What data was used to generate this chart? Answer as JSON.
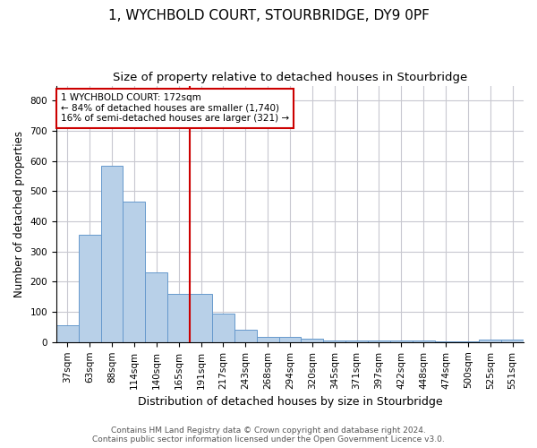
{
  "title": "1, WYCHBOLD COURT, STOURBRIDGE, DY9 0PF",
  "subtitle": "Size of property relative to detached houses in Stourbridge",
  "xlabel": "Distribution of detached houses by size in Stourbridge",
  "ylabel": "Number of detached properties",
  "categories": [
    "37sqm",
    "63sqm",
    "88sqm",
    "114sqm",
    "140sqm",
    "165sqm",
    "191sqm",
    "217sqm",
    "243sqm",
    "268sqm",
    "294sqm",
    "320sqm",
    "345sqm",
    "371sqm",
    "397sqm",
    "422sqm",
    "448sqm",
    "474sqm",
    "500sqm",
    "525sqm",
    "551sqm"
  ],
  "values": [
    55,
    355,
    585,
    465,
    230,
    160,
    160,
    95,
    42,
    18,
    18,
    12,
    5,
    5,
    5,
    5,
    5,
    2,
    2,
    8,
    8
  ],
  "bar_color": "#b8d0e8",
  "bar_edge_color": "#6699cc",
  "grid_color": "#c8c8d0",
  "vline_color": "#cc0000",
  "annotation_text": "1 WYCHBOLD COURT: 172sqm\n← 84% of detached houses are smaller (1,740)\n16% of semi-detached houses are larger (321) →",
  "annotation_box_color": "#ffffff",
  "annotation_box_edge": "#cc0000",
  "ylim": [
    0,
    850
  ],
  "yticks": [
    0,
    100,
    200,
    300,
    400,
    500,
    600,
    700,
    800
  ],
  "footer_line1": "Contains HM Land Registry data © Crown copyright and database right 2024.",
  "footer_line2": "Contains public sector information licensed under the Open Government Licence v3.0.",
  "title_fontsize": 11,
  "subtitle_fontsize": 9.5,
  "ylabel_fontsize": 8.5,
  "xlabel_fontsize": 9,
  "tick_fontsize": 7.5,
  "annotation_fontsize": 7.5,
  "footer_fontsize": 6.5,
  "vline_x": 5.5
}
